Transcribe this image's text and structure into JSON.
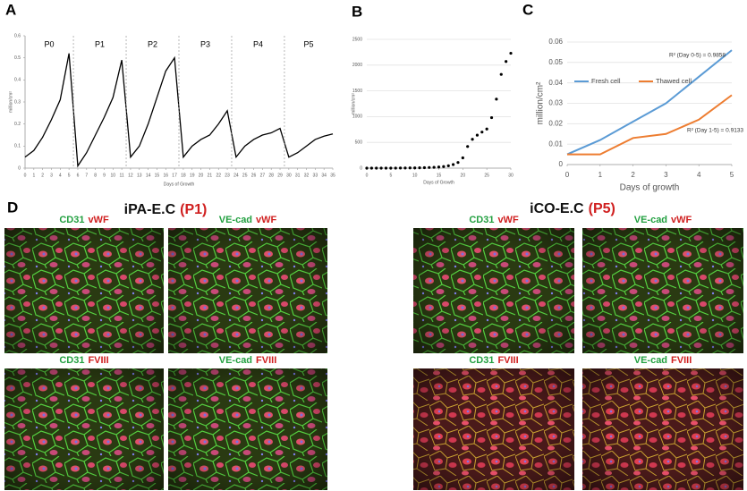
{
  "chart_data": [
    {
      "type": "line",
      "panel_label": "A",
      "xlabel": "Days of Growth",
      "ylabel": "million/cm²",
      "color": "#000000",
      "passages": [
        "P0",
        "P1",
        "P2",
        "P3",
        "P4",
        "P5"
      ],
      "x": [
        0,
        1,
        2,
        3,
        4,
        5,
        6,
        7,
        8,
        9,
        10,
        11,
        12,
        13,
        14,
        15,
        16,
        17,
        18,
        19,
        20,
        21,
        22,
        23,
        24,
        25,
        26,
        27,
        28,
        29,
        30,
        31,
        32,
        33,
        34,
        35
      ],
      "values": [
        0.05,
        0.08,
        0.14,
        0.22,
        0.31,
        0.52,
        0.01,
        0.07,
        0.15,
        0.23,
        0.32,
        0.49,
        0.05,
        0.1,
        0.2,
        0.32,
        0.44,
        0.5,
        0.05,
        0.1,
        0.13,
        0.15,
        0.2,
        0.26,
        0.05,
        0.1,
        0.13,
        0.15,
        0.16,
        0.18,
        0.05,
        0.07,
        0.1,
        0.13,
        0.145,
        0.155
      ],
      "xlim": [
        0,
        35
      ],
      "xticks": [
        0,
        1,
        2,
        3,
        4,
        5,
        6,
        7,
        8,
        9,
        10,
        11,
        12,
        13,
        14,
        15,
        16,
        17,
        18,
        19,
        20,
        21,
        22,
        23,
        24,
        25,
        26,
        27,
        28,
        29,
        30,
        31,
        32,
        33,
        34,
        35
      ],
      "ylim": [
        0,
        0.6
      ],
      "yticks": [
        0,
        0.1,
        0.2,
        0.3,
        0.4,
        0.5,
        0.6
      ],
      "grid": false
    },
    {
      "type": "scatter",
      "panel_label": "B",
      "xlabel": "Days of Growth",
      "ylabel": "million/cm²",
      "color": "#000000",
      "x": [
        0,
        1,
        2,
        3,
        4,
        5,
        6,
        7,
        8,
        9,
        10,
        11,
        12,
        13,
        14,
        15,
        16,
        17,
        18,
        19,
        20,
        21,
        22,
        23,
        24,
        25,
        26,
        27,
        28,
        29,
        30
      ],
      "values": [
        0,
        0,
        0,
        0,
        0,
        1,
        1,
        2,
        3,
        4,
        5,
        7,
        9,
        12,
        16,
        22,
        30,
        45,
        70,
        110,
        200,
        420,
        560,
        640,
        700,
        760,
        980,
        1340,
        1820,
        2070,
        2230
      ],
      "xlim": [
        0,
        30
      ],
      "xticks": [
        0,
        5,
        10,
        15,
        20,
        25,
        30
      ],
      "ylim": [
        0,
        2500
      ],
      "yticks": [
        0,
        500,
        1000,
        1500,
        2000,
        2500
      ],
      "grid": true
    },
    {
      "type": "line",
      "panel_label": "C",
      "xlabel": "Days of growth",
      "ylabel": "million/cm²",
      "x": [
        0,
        1,
        2,
        3,
        4,
        5
      ],
      "series": [
        {
          "name": "Fresh cell",
          "color": "#5b9bd5",
          "values": [
            0.005,
            0.012,
            0.021,
            0.03,
            0.043,
            0.056
          ]
        },
        {
          "name": "Thawed cell",
          "color": "#ed7d31",
          "values": [
            0.005,
            0.005,
            0.013,
            0.015,
            0.022,
            0.034
          ]
        }
      ],
      "annotations": [
        "R² (Day 0-5) = 0.9858",
        "R² (Day 1-5) = 0.9133"
      ],
      "xlim": [
        0,
        5
      ],
      "xticks": [
        0,
        1,
        2,
        3,
        4,
        5
      ],
      "ylim": [
        0,
        0.06
      ],
      "yticks": [
        0,
        0.01,
        0.02,
        0.03,
        0.04,
        0.05,
        0.06
      ],
      "grid": true
    }
  ],
  "figure_d": {
    "label": "D",
    "groups": [
      {
        "title": "iPA-E.C",
        "passage": "(P1)",
        "images": [
          {
            "green": "CD31",
            "red": "vWF"
          },
          {
            "green": "VE-cad",
            "red": "vWF"
          },
          {
            "green": "CD31",
            "red": "FVIII"
          },
          {
            "green": "VE-cad",
            "red": "FVIII"
          }
        ]
      },
      {
        "title": "iCO-E.C",
        "passage": "(P5)",
        "images": [
          {
            "green": "CD31",
            "red": "vWF"
          },
          {
            "green": "VE-cad",
            "red": "vWF"
          },
          {
            "green": "CD31",
            "red": "FVIII"
          },
          {
            "green": "VE-cad",
            "red": "FVIII"
          }
        ]
      }
    ]
  }
}
